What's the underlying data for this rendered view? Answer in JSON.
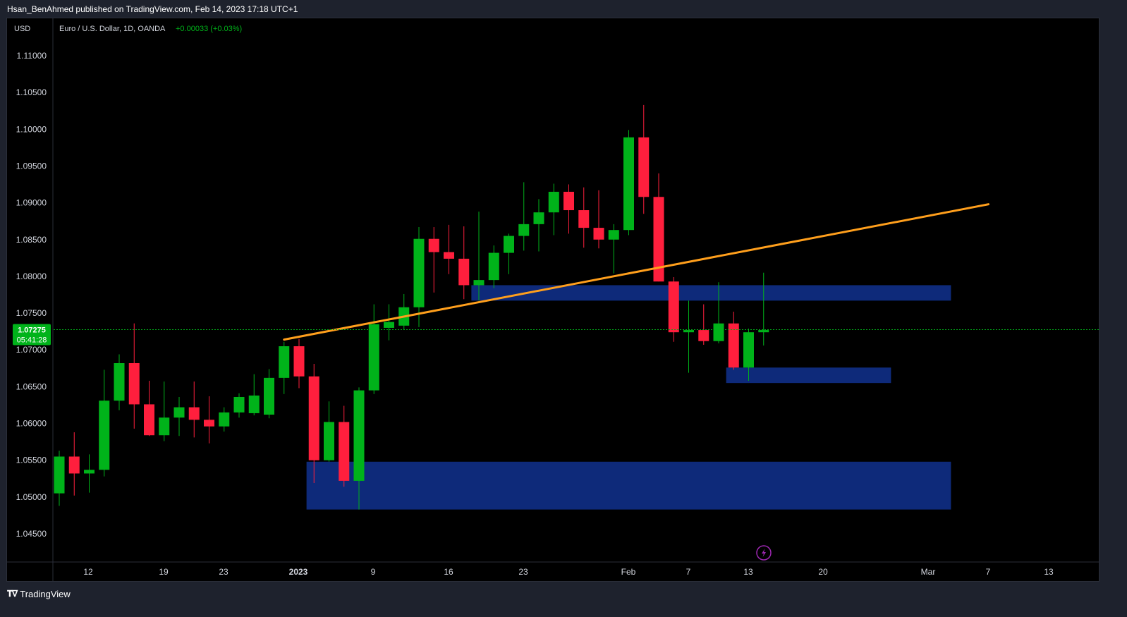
{
  "header": {
    "publisher_line": "Hsan_BenAhmed published on TradingView.com, Feb 14, 2023 17:18 UTC+1"
  },
  "footer": {
    "brand": "TradingView",
    "logo_icon": "tradingview-logo-icon"
  },
  "chart_data": {
    "type": "candlestick",
    "currency": "USD",
    "symbol_line": "Euro / U.S. Dollar, 1D, OANDA",
    "change_text": "+0.00033 (+0.03%)",
    "current_price": {
      "value": 1.07275,
      "label": "1.07275",
      "countdown": "05:41:28"
    },
    "colors": {
      "up": "#00b31a",
      "down": "#ff1f3d",
      "trendline": "#ff9f1c",
      "zone": "#0e2a7a",
      "price_line": "#00b31a",
      "lightning": "#9c27b0"
    },
    "y_ticks": [
      "1.11000",
      "1.10500",
      "1.10000",
      "1.09500",
      "1.09000",
      "1.08500",
      "1.08000",
      "1.07500",
      "1.07000",
      "1.06500",
      "1.06000",
      "1.05500",
      "1.05000",
      "1.04500"
    ],
    "x_ticks": [
      "12",
      "19",
      "23",
      "2023",
      "9",
      "16",
      "23",
      "Feb",
      "7",
      "13",
      "20",
      "Mar",
      "7",
      "13"
    ],
    "candles": [
      {
        "date": "2022-12-08",
        "o": 1.0505,
        "h": 1.0563,
        "l": 1.0488,
        "c": 1.0555
      },
      {
        "date": "2022-12-09",
        "o": 1.0555,
        "h": 1.0588,
        "l": 1.0502,
        "c": 1.0532
      },
      {
        "date": "2022-12-12",
        "o": 1.0532,
        "h": 1.0558,
        "l": 1.0506,
        "c": 1.0537
      },
      {
        "date": "2022-12-13",
        "o": 1.0537,
        "h": 1.0673,
        "l": 1.0528,
        "c": 1.0631
      },
      {
        "date": "2022-12-14",
        "o": 1.0631,
        "h": 1.0694,
        "l": 1.0618,
        "c": 1.0682
      },
      {
        "date": "2022-12-15",
        "o": 1.0682,
        "h": 1.0736,
        "l": 1.0593,
        "c": 1.0626
      },
      {
        "date": "2022-12-16",
        "o": 1.0626,
        "h": 1.0658,
        "l": 1.0583,
        "c": 1.0584
      },
      {
        "date": "2022-12-19",
        "o": 1.0584,
        "h": 1.0657,
        "l": 1.0576,
        "c": 1.0608
      },
      {
        "date": "2022-12-20",
        "o": 1.0608,
        "h": 1.0636,
        "l": 1.0583,
        "c": 1.0622
      },
      {
        "date": "2022-12-21",
        "o": 1.0622,
        "h": 1.0657,
        "l": 1.0581,
        "c": 1.0605
      },
      {
        "date": "2022-12-22",
        "o": 1.0605,
        "h": 1.0637,
        "l": 1.0573,
        "c": 1.0596
      },
      {
        "date": "2022-12-23",
        "o": 1.0596,
        "h": 1.0622,
        "l": 1.0589,
        "c": 1.0615
      },
      {
        "date": "2022-12-26",
        "o": 1.0615,
        "h": 1.0641,
        "l": 1.0608,
        "c": 1.0636
      },
      {
        "date": "2022-12-27",
        "o": 1.0614,
        "h": 1.0667,
        "l": 1.0611,
        "c": 1.0638
      },
      {
        "date": "2022-12-28",
        "o": 1.0612,
        "h": 1.0674,
        "l": 1.0607,
        "c": 1.0662
      },
      {
        "date": "2022-12-29",
        "o": 1.0662,
        "h": 1.0711,
        "l": 1.064,
        "c": 1.0705
      },
      {
        "date": "2022-12-30",
        "o": 1.0705,
        "h": 1.0715,
        "l": 1.0648,
        "c": 1.0664
      },
      {
        "date": "2023-01-02",
        "o": 1.0664,
        "h": 1.0681,
        "l": 1.0519,
        "c": 1.055
      },
      {
        "date": "2023-01-03",
        "o": 1.055,
        "h": 1.063,
        "l": 1.0548,
        "c": 1.0602
      },
      {
        "date": "2023-01-04",
        "o": 1.0602,
        "h": 1.0624,
        "l": 1.0514,
        "c": 1.0522
      },
      {
        "date": "2023-01-05",
        "o": 1.0522,
        "h": 1.0649,
        "l": 1.0483,
        "c": 1.0645
      },
      {
        "date": "2023-01-06",
        "o": 1.0645,
        "h": 1.0762,
        "l": 1.064,
        "c": 1.0735
      },
      {
        "date": "2023-01-09",
        "o": 1.073,
        "h": 1.0762,
        "l": 1.0713,
        "c": 1.0738
      },
      {
        "date": "2023-01-10",
        "o": 1.0733,
        "h": 1.0776,
        "l": 1.0728,
        "c": 1.0758
      },
      {
        "date": "2023-01-11",
        "o": 1.0758,
        "h": 1.0867,
        "l": 1.0731,
        "c": 1.0851
      },
      {
        "date": "2023-01-12",
        "o": 1.0851,
        "h": 1.0867,
        "l": 1.0778,
        "c": 1.0833
      },
      {
        "date": "2023-01-13",
        "o": 1.0833,
        "h": 1.087,
        "l": 1.0803,
        "c": 1.0824
      },
      {
        "date": "2023-01-16",
        "o": 1.0824,
        "h": 1.0868,
        "l": 1.0769,
        "c": 1.0788
      },
      {
        "date": "2023-01-17",
        "o": 1.0788,
        "h": 1.0888,
        "l": 1.0767,
        "c": 1.0795
      },
      {
        "date": "2023-01-18",
        "o": 1.0795,
        "h": 1.0842,
        "l": 1.0784,
        "c": 1.0832
      },
      {
        "date": "2023-01-19",
        "o": 1.0832,
        "h": 1.0858,
        "l": 1.0803,
        "c": 1.0855
      },
      {
        "date": "2023-01-20",
        "o": 1.0855,
        "h": 1.0928,
        "l": 1.0835,
        "c": 1.0871
      },
      {
        "date": "2023-01-23",
        "o": 1.0871,
        "h": 1.0905,
        "l": 1.0834,
        "c": 1.0887
      },
      {
        "date": "2023-01-24",
        "o": 1.0887,
        "h": 1.0926,
        "l": 1.0856,
        "c": 1.0915
      },
      {
        "date": "2023-01-25",
        "o": 1.0915,
        "h": 1.0925,
        "l": 1.0858,
        "c": 1.089
      },
      {
        "date": "2023-01-26",
        "o": 1.089,
        "h": 1.0921,
        "l": 1.0839,
        "c": 1.0866
      },
      {
        "date": "2023-01-27",
        "o": 1.0866,
        "h": 1.0917,
        "l": 1.0838,
        "c": 1.085
      },
      {
        "date": "2023-01-30",
        "o": 1.085,
        "h": 1.0871,
        "l": 1.0804,
        "c": 1.0863
      },
      {
        "date": "2023-01-31",
        "o": 1.0863,
        "h": 1.0999,
        "l": 1.0856,
        "c": 1.0989
      },
      {
        "date": "2023-02-01",
        "o": 1.0989,
        "h": 1.1033,
        "l": 1.0885,
        "c": 1.0908
      },
      {
        "date": "2023-02-02",
        "o": 1.0908,
        "h": 1.094,
        "l": 1.0793,
        "c": 1.0793
      },
      {
        "date": "2023-02-03",
        "o": 1.0793,
        "h": 1.0799,
        "l": 1.0711,
        "c": 1.0724
      },
      {
        "date": "2023-02-06",
        "o": 1.0724,
        "h": 1.0767,
        "l": 1.0669,
        "c": 1.0727
      },
      {
        "date": "2023-02-07",
        "o": 1.0727,
        "h": 1.0762,
        "l": 1.0707,
        "c": 1.0712
      },
      {
        "date": "2023-02-08",
        "o": 1.0712,
        "h": 1.0792,
        "l": 1.0709,
        "c": 1.0736
      },
      {
        "date": "2023-02-09",
        "o": 1.0736,
        "h": 1.0752,
        "l": 1.0673,
        "c": 1.0676
      },
      {
        "date": "2023-02-10",
        "o": 1.0676,
        "h": 1.0729,
        "l": 1.0658,
        "c": 1.0724
      },
      {
        "date": "2023-02-13",
        "o": 1.0724,
        "h": 1.0805,
        "l": 1.0706,
        "c": 1.0727
      }
    ],
    "trendline": {
      "from": {
        "date": "2022-12-29",
        "price": 1.0714
      },
      "to": {
        "date": "2023-03-06",
        "price": 1.0898
      }
    },
    "zones": [
      {
        "from_date": "2023-01-17",
        "to_date": "2023-03-01",
        "top": 1.0788,
        "bottom": 1.0767
      },
      {
        "from_date": "2023-01-02",
        "to_date": "2023-03-01",
        "top": 1.0548,
        "bottom": 1.0483
      },
      {
        "from_date": "2023-02-09",
        "to_date": "2023-02-23",
        "top": 1.0676,
        "bottom": 1.0655
      }
    ]
  }
}
